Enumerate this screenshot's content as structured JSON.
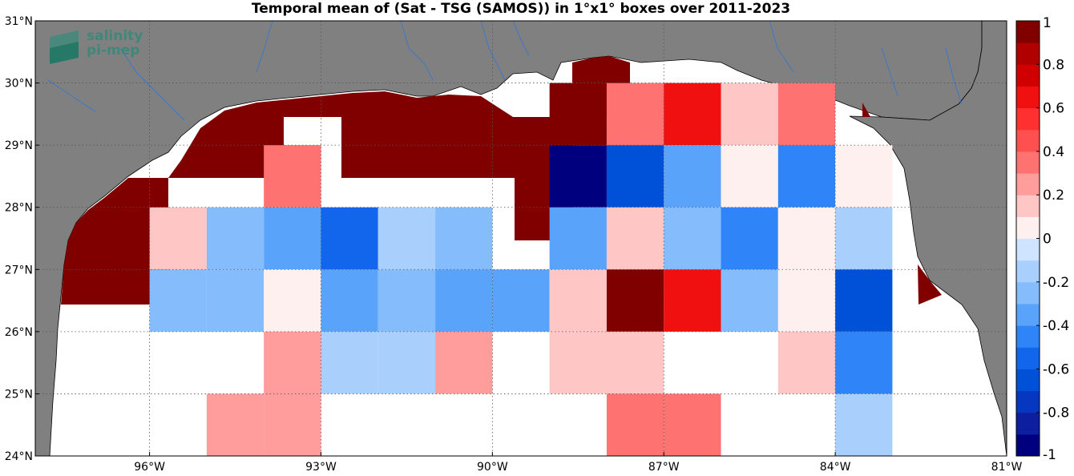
{
  "title": "Temporal mean of (Sat - TSG (SAMOS)) in 1°x1° boxes over 2011-2023",
  "logo": {
    "line1": "salinity",
    "line2": "pi-mep"
  },
  "map": {
    "lon_range": [
      -98.0,
      -81.0
    ],
    "lat_range": [
      24.0,
      31.0
    ],
    "land_color": "#808080",
    "ocean_color": "#ffffff",
    "river_color": "#3c78c8",
    "lon_ticks": [
      {
        "value": -96,
        "label": "96°W"
      },
      {
        "value": -93,
        "label": "93°W"
      },
      {
        "value": -90,
        "label": "90°W"
      },
      {
        "value": -87,
        "label": "87°W"
      },
      {
        "value": -84,
        "label": "84°W"
      },
      {
        "value": -81,
        "label": "81°W"
      }
    ],
    "lat_ticks": [
      {
        "value": 24,
        "label": "24°N"
      },
      {
        "value": 25,
        "label": "25°N"
      },
      {
        "value": 26,
        "label": "26°N"
      },
      {
        "value": 27,
        "label": "27°N"
      },
      {
        "value": 28,
        "label": "28°N"
      },
      {
        "value": 29,
        "label": "29°N"
      },
      {
        "value": 30,
        "label": "30°N"
      },
      {
        "value": 31,
        "label": "31°N"
      }
    ]
  },
  "chart_data": {
    "type": "heatmap",
    "title": "Temporal mean of (Sat - TSG (SAMOS)) in 1°x1° boxes over 2011-2023",
    "cell_size_deg": 1,
    "cells": [
      {
        "lon": -88.5,
        "lat": 29.5,
        "value": 1.0
      },
      {
        "lon": -87.5,
        "lat": 29.5,
        "value": 0.35
      },
      {
        "lon": -86.5,
        "lat": 29.5,
        "value": 0.6
      },
      {
        "lon": -85.5,
        "lat": 29.5,
        "value": 0.15
      },
      {
        "lon": -84.5,
        "lat": 29.5,
        "value": 0.35
      },
      {
        "lon": -93.5,
        "lat": 28.5,
        "value": 0.35
      },
      {
        "lon": -88.5,
        "lat": 28.5,
        "value": -0.9
      },
      {
        "lon": -87.5,
        "lat": 28.5,
        "value": -0.65
      },
      {
        "lon": -86.5,
        "lat": 28.5,
        "value": -0.35
      },
      {
        "lon": -85.5,
        "lat": 28.5,
        "value": 0.0
      },
      {
        "lon": -84.5,
        "lat": 28.5,
        "value": -0.45
      },
      {
        "lon": -83.5,
        "lat": 28.5,
        "value": 0.0
      },
      {
        "lon": -95.5,
        "lat": 27.5,
        "value": 0.15
      },
      {
        "lon": -94.5,
        "lat": 27.5,
        "value": -0.25
      },
      {
        "lon": -93.5,
        "lat": 27.5,
        "value": -0.35
      },
      {
        "lon": -92.5,
        "lat": 27.5,
        "value": -0.6
      },
      {
        "lon": -91.5,
        "lat": 27.5,
        "value": -0.15
      },
      {
        "lon": -90.5,
        "lat": 27.5,
        "value": -0.3
      },
      {
        "lon": -88.5,
        "lat": 27.5,
        "value": -0.35
      },
      {
        "lon": -87.5,
        "lat": 27.5,
        "value": 0.15
      },
      {
        "lon": -86.5,
        "lat": 27.5,
        "value": -0.3
      },
      {
        "lon": -85.5,
        "lat": 27.5,
        "value": -0.45
      },
      {
        "lon": -84.5,
        "lat": 27.5,
        "value": 0.0
      },
      {
        "lon": -83.5,
        "lat": 27.5,
        "value": -0.15
      },
      {
        "lon": -95.5,
        "lat": 26.5,
        "value": -0.25
      },
      {
        "lon": -94.5,
        "lat": 26.5,
        "value": -0.25
      },
      {
        "lon": -93.5,
        "lat": 26.5,
        "value": 0.0
      },
      {
        "lon": -92.5,
        "lat": 26.5,
        "value": -0.35
      },
      {
        "lon": -91.5,
        "lat": 26.5,
        "value": -0.3
      },
      {
        "lon": -90.5,
        "lat": 26.5,
        "value": -0.4
      },
      {
        "lon": -89.5,
        "lat": 26.5,
        "value": -0.4
      },
      {
        "lon": -88.5,
        "lat": 26.5,
        "value": 0.15
      },
      {
        "lon": -87.5,
        "lat": 26.5,
        "value": 1.0
      },
      {
        "lon": -86.5,
        "lat": 26.5,
        "value": 0.6
      },
      {
        "lon": -85.5,
        "lat": 26.5,
        "value": -0.3
      },
      {
        "lon": -84.5,
        "lat": 26.5,
        "value": 0.0
      },
      {
        "lon": -83.5,
        "lat": 26.5,
        "value": -0.65
      },
      {
        "lon": -93.5,
        "lat": 25.5,
        "value": 0.25
      },
      {
        "lon": -92.5,
        "lat": 25.5,
        "value": -0.15
      },
      {
        "lon": -91.5,
        "lat": 25.5,
        "value": -0.15
      },
      {
        "lon": -90.5,
        "lat": 25.5,
        "value": 0.25
      },
      {
        "lon": -88.5,
        "lat": 25.5,
        "value": 0.15
      },
      {
        "lon": -87.5,
        "lat": 25.5,
        "value": 0.15
      },
      {
        "lon": -84.5,
        "lat": 25.5,
        "value": 0.15
      },
      {
        "lon": -83.5,
        "lat": 25.5,
        "value": -0.45
      },
      {
        "lon": -94.5,
        "lat": 24.5,
        "value": 0.25
      },
      {
        "lon": -93.5,
        "lat": 24.5,
        "value": 0.25
      },
      {
        "lon": -87.5,
        "lat": 24.5,
        "value": 0.35
      },
      {
        "lon": -86.5,
        "lat": 24.5,
        "value": 0.35
      },
      {
        "lon": -83.5,
        "lat": 24.5,
        "value": -0.15
      }
    ],
    "coastal_band_value": 1.0,
    "colorbar": {
      "range": [
        -1,
        1
      ],
      "levels": 20,
      "colors": [
        "#00007f",
        "#0d1fa0",
        "#0637c0",
        "#0050d8",
        "#1266ec",
        "#2f85f7",
        "#5aa3fb",
        "#84bcfc",
        "#a9d0fd",
        "#cfe4fe",
        "#fff0f0",
        "#ffc6c6",
        "#ff9c9c",
        "#ff7272",
        "#ff5050",
        "#ff3030",
        "#f01010",
        "#d00000",
        "#b00000",
        "#800000"
      ],
      "ticks": [
        {
          "value": 1,
          "label": "1"
        },
        {
          "value": 0.8,
          "label": "0.8"
        },
        {
          "value": 0.6,
          "label": "0.6"
        },
        {
          "value": 0.4,
          "label": "0.4"
        },
        {
          "value": 0.2,
          "label": "0.2"
        },
        {
          "value": 0,
          "label": "0"
        },
        {
          "value": -0.2,
          "label": "-0.2"
        },
        {
          "value": -0.4,
          "label": "-0.4"
        },
        {
          "value": -0.6,
          "label": "-0.6"
        },
        {
          "value": -0.8,
          "label": "-0.8"
        },
        {
          "value": -1,
          "label": "-1"
        }
      ]
    }
  }
}
